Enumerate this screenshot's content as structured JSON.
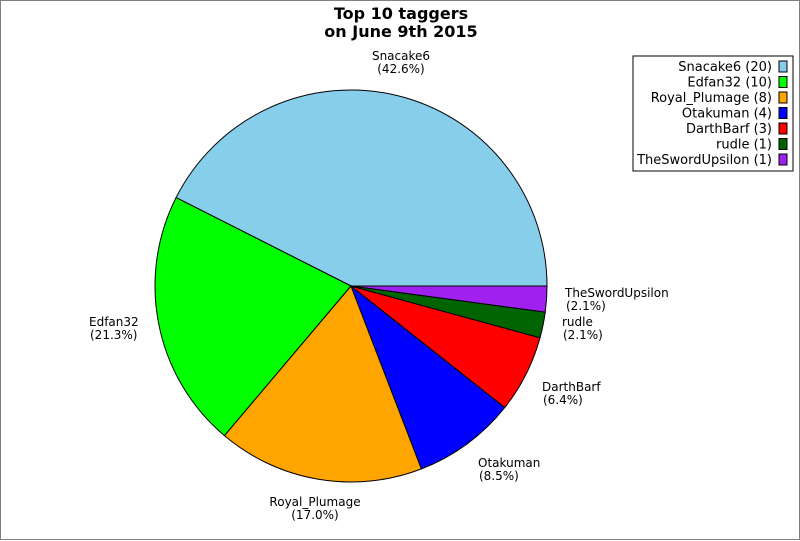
{
  "chart_data": {
    "type": "pie",
    "title_lines": [
      "Top 10 taggers",
      "on June 9th 2015"
    ],
    "slices": [
      {
        "name": "Snacake6",
        "value": 20,
        "percent_label": "(42.6%)",
        "legend_label": "Snacake6 (20)",
        "color": "#87ceeb"
      },
      {
        "name": "Edfan32",
        "value": 10,
        "percent_label": "(21.3%)",
        "legend_label": "Edfan32 (10)",
        "color": "#00ff00"
      },
      {
        "name": "Royal_Plumage",
        "value": 8,
        "percent_label": "(17.0%)",
        "legend_label": "Royal_Plumage (8)",
        "color": "#ffa500"
      },
      {
        "name": "Otakuman",
        "value": 4,
        "percent_label": "(8.5%)",
        "legend_label": "Otakuman (4)",
        "color": "#0000ff"
      },
      {
        "name": "DarthBarf",
        "value": 3,
        "percent_label": "(6.4%)",
        "legend_label": "DarthBarf (3)",
        "color": "#ff0000"
      },
      {
        "name": "rudle",
        "value": 1,
        "percent_label": "(2.1%)",
        "legend_label": "rudle (1)",
        "color": "#006400"
      },
      {
        "name": "TheSwordUpsilon",
        "value": 1,
        "percent_label": "(2.1%)",
        "legend_label": "TheSwordUpsilon (1)",
        "color": "#a020f0"
      }
    ],
    "legend_position": "top-right"
  }
}
